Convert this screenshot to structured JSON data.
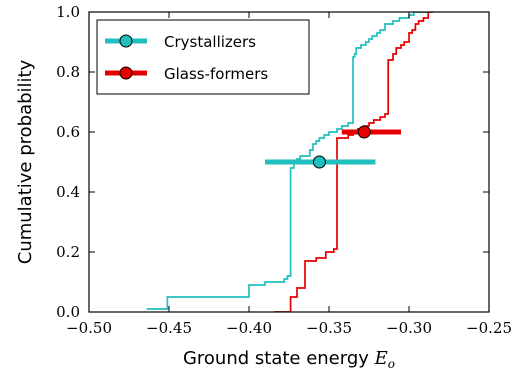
{
  "chart_data": {
    "type": "line",
    "step": true,
    "xlabel": "Ground state energy",
    "xlabel_symbol": "E",
    "xlabel_subscript": "o",
    "ylabel": "Cumulative probability",
    "xlim": [
      -0.5,
      -0.25
    ],
    "ylim": [
      0.0,
      1.0
    ],
    "x_ticks": [
      -0.5,
      -0.45,
      -0.4,
      -0.35,
      -0.3,
      -0.25
    ],
    "x_tick_labels": [
      "−0.50",
      "−0.45",
      "−0.40",
      "−0.35",
      "−0.30",
      "−0.25"
    ],
    "y_ticks": [
      0.0,
      0.2,
      0.4,
      0.6,
      0.8,
      1.0
    ],
    "y_tick_labels": [
      "0.0",
      "0.2",
      "0.4",
      "0.6",
      "0.8",
      "1.0"
    ],
    "grid": false,
    "legend_position": "top-left",
    "series": [
      {
        "name": "Crystallizers",
        "color": "#22bfbf",
        "x": [
          -0.464,
          -0.451,
          -0.451,
          -0.4,
          -0.4,
          -0.39,
          -0.39,
          -0.378,
          -0.378,
          -0.376,
          -0.376,
          -0.374,
          -0.374,
          -0.372,
          -0.372,
          -0.37,
          -0.37,
          -0.368,
          -0.368,
          -0.362,
          -0.362,
          -0.36,
          -0.36,
          -0.358,
          -0.358,
          -0.356,
          -0.356,
          -0.353,
          -0.353,
          -0.35,
          -0.35,
          -0.345,
          -0.345,
          -0.342,
          -0.342,
          -0.338,
          -0.338,
          -0.335,
          -0.335,
          -0.334,
          -0.334,
          -0.333,
          -0.333,
          -0.33,
          -0.33,
          -0.327,
          -0.327,
          -0.325,
          -0.325,
          -0.323,
          -0.323,
          -0.32,
          -0.32,
          -0.318,
          -0.318,
          -0.315,
          -0.315,
          -0.31,
          -0.31,
          -0.306,
          -0.306,
          -0.3,
          -0.3,
          -0.297,
          -0.297,
          -0.288
        ],
        "y": [
          0.01,
          0.01,
          0.05,
          0.05,
          0.09,
          0.09,
          0.1,
          0.1,
          0.11,
          0.11,
          0.12,
          0.12,
          0.48,
          0.48,
          0.5,
          0.5,
          0.51,
          0.51,
          0.52,
          0.52,
          0.54,
          0.54,
          0.56,
          0.56,
          0.57,
          0.57,
          0.58,
          0.58,
          0.59,
          0.59,
          0.6,
          0.6,
          0.61,
          0.61,
          0.62,
          0.62,
          0.63,
          0.63,
          0.85,
          0.85,
          0.86,
          0.86,
          0.88,
          0.88,
          0.89,
          0.89,
          0.9,
          0.9,
          0.91,
          0.91,
          0.92,
          0.92,
          0.93,
          0.93,
          0.94,
          0.94,
          0.96,
          0.96,
          0.97,
          0.97,
          0.98,
          0.98,
          0.99,
          0.99,
          1.0,
          1.0
        ],
        "errorbar": {
          "center_x": -0.356,
          "center_y": 0.5,
          "x_min": -0.39,
          "x_max": -0.321
        }
      },
      {
        "name": "Glass-formers",
        "color": "#e60000",
        "x": [
          -0.384,
          -0.374,
          -0.374,
          -0.37,
          -0.37,
          -0.365,
          -0.365,
          -0.358,
          -0.358,
          -0.352,
          -0.352,
          -0.347,
          -0.347,
          -0.345,
          -0.345,
          -0.338,
          -0.338,
          -0.335,
          -0.335,
          -0.332,
          -0.332,
          -0.328,
          -0.328,
          -0.325,
          -0.325,
          -0.322,
          -0.322,
          -0.318,
          -0.318,
          -0.315,
          -0.315,
          -0.313,
          -0.313,
          -0.31,
          -0.31,
          -0.308,
          -0.308,
          -0.305,
          -0.305,
          -0.303,
          -0.303,
          -0.3,
          -0.3,
          -0.298,
          -0.298,
          -0.296,
          -0.296,
          -0.294,
          -0.294,
          -0.291,
          -0.291,
          -0.288,
          -0.288,
          -0.285
        ],
        "y": [
          0.0,
          0.0,
          0.05,
          0.05,
          0.08,
          0.08,
          0.17,
          0.17,
          0.18,
          0.18,
          0.2,
          0.2,
          0.21,
          0.21,
          0.58,
          0.58,
          0.59,
          0.59,
          0.6,
          0.6,
          0.61,
          0.61,
          0.62,
          0.62,
          0.63,
          0.63,
          0.64,
          0.64,
          0.65,
          0.65,
          0.66,
          0.66,
          0.84,
          0.84,
          0.86,
          0.86,
          0.88,
          0.88,
          0.89,
          0.89,
          0.9,
          0.9,
          0.93,
          0.93,
          0.94,
          0.94,
          0.96,
          0.96,
          0.97,
          0.97,
          0.98,
          0.98,
          1.0,
          1.0
        ],
        "errorbar": {
          "center_x": -0.328,
          "center_y": 0.6,
          "x_min": -0.342,
          "x_max": -0.305
        }
      }
    ]
  }
}
